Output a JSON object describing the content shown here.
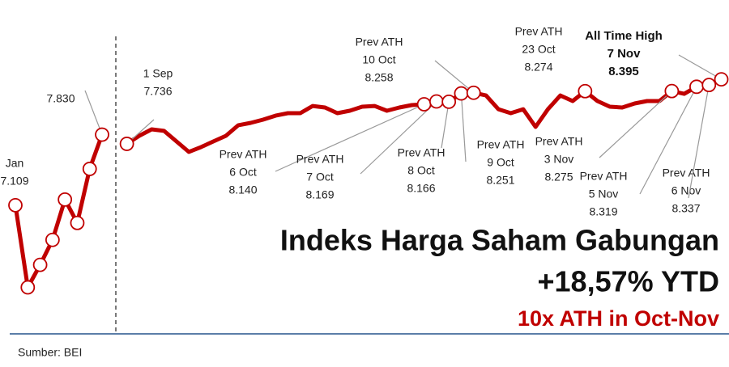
{
  "chart_data": {
    "type": "line",
    "title": "Indeks Harga Saham Gabungan",
    "subtitle": "+18,57% YTD",
    "highlight": "10x ATH in Oct-Nov",
    "source": "Sumber: BEI",
    "ylim": [
      6150,
      8875
    ],
    "categories": [
      null,
      null,
      null,
      null,
      null,
      null,
      null,
      null,
      null,
      null,
      null,
      null,
      null,
      null,
      null,
      null,
      null,
      null,
      null,
      null,
      null,
      null,
      null,
      null,
      null,
      null,
      null,
      null,
      null,
      null,
      null,
      null,
      null,
      null,
      null,
      null,
      null,
      null,
      null,
      null,
      null,
      null,
      null,
      null,
      null,
      null,
      null,
      null,
      null,
      null,
      null,
      null,
      null,
      null,
      null,
      null,
      null,
      null
    ],
    "series": [
      {
        "color": "#c00000",
        "markers": true,
        "values": [
          7109,
          6270,
          6500,
          6755,
          7167,
          6928,
          7480,
          7830,
          null,
          null,
          null,
          null,
          null,
          null,
          null,
          null,
          null,
          null,
          null,
          null,
          null,
          null,
          null,
          null,
          null,
          null,
          null,
          null,
          null,
          null,
          null,
          null,
          null,
          null,
          null,
          null,
          null,
          null,
          null,
          null,
          null,
          null,
          null,
          null,
          null,
          null,
          null,
          null,
          null,
          null,
          null,
          null,
          null,
          null,
          null,
          null,
          null,
          null
        ]
      },
      {
        "color": "#c00000",
        "markers": false,
        "values": [
          null,
          null,
          null,
          null,
          null,
          null,
          null,
          null,
          null,
          7736,
          7818,
          7884,
          7868,
          7761,
          7654,
          7703,
          7761,
          7818,
          7926,
          7950,
          7983,
          8024,
          8049,
          8049,
          8123,
          8107,
          8049,
          8074,
          8115,
          8123,
          8074,
          8107,
          8132,
          8140,
          8169,
          8166,
          8251,
          8258,
          8230,
          8090,
          8049,
          8090,
          7909,
          8090,
          8230,
          8173,
          8274,
          8173,
          8115,
          8107,
          8148,
          8173,
          8173,
          8275,
          8247,
          8319,
          8337,
          8395
        ]
      }
    ],
    "annotations": [
      {
        "date": "Jan",
        "value_label": "7.109",
        "value": 7109
      },
      {
        "value_label": "7.830",
        "value": 7830
      },
      {
        "date": "1 Sep",
        "value_label": "7.736",
        "value": 7736
      },
      {
        "heading": "Prev ATH",
        "date": "6 Oct",
        "value_label": "8.140",
        "value": 8140
      },
      {
        "heading": "Prev ATH",
        "date": "7 Oct",
        "value_label": "8.169",
        "value": 8169
      },
      {
        "heading": "Prev ATH",
        "date": "8 Oct",
        "value_label": "8.166",
        "value": 8166
      },
      {
        "heading": "Prev ATH",
        "date": "9 Oct",
        "value_label": "8.251",
        "value": 8251
      },
      {
        "heading": "Prev ATH",
        "date": "10 Oct",
        "value_label": "8.258",
        "value": 8258
      },
      {
        "heading": "Prev ATH",
        "date": "23 Oct",
        "value_label": "8.274",
        "value": 8274
      },
      {
        "heading": "Prev ATH",
        "date": "3 Nov",
        "value_label": "8.275",
        "value": 8275
      },
      {
        "heading": "Prev ATH",
        "date": "5 Nov",
        "value_label": "8.319",
        "value": 8319
      },
      {
        "heading": "Prev ATH",
        "date": "6 Nov",
        "value_label": "8.337",
        "value": 8337
      },
      {
        "heading": "All Time High",
        "date": "7 Nov",
        "value_label": "8.395",
        "value": 8395
      }
    ]
  }
}
